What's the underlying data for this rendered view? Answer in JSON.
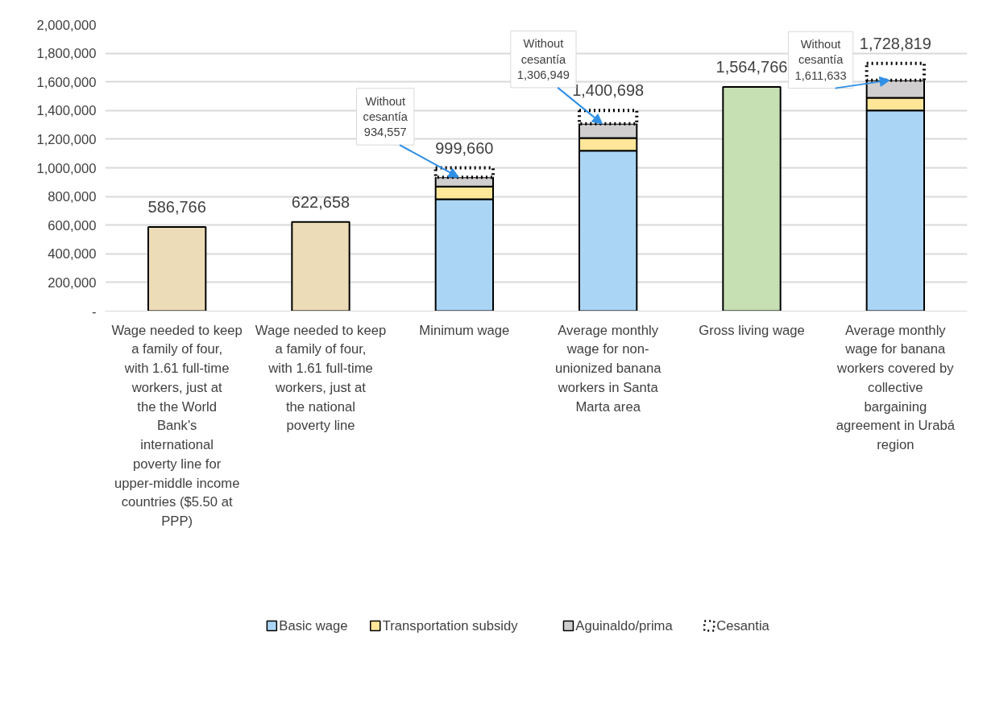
{
  "chart_data": {
    "type": "bar",
    "stacked": true,
    "categories": [
      "Wage needed to keep a family of four, with 1.61 full-time workers, just at the the World Bank's international poverty line for upper-middle income countries ($5.50 at PPP)",
      "Wage needed to keep a family of four, with 1.61 full-time workers, just at the national poverty line",
      "Minimum wage",
      "Average monthly wage for non-unionized banana workers in Santa Marta area",
      "Gross living wage",
      "Average monthly wage for banana workers covered by collective bargaining agreement in Urabá region"
    ],
    "series": [
      {
        "colors": [
          "#ecdcb7",
          "#ecdcb7",
          null,
          null,
          "#c6e0b4",
          null
        ],
        "values": [
          586766,
          622658,
          null,
          null,
          1564766,
          null
        ]
      },
      {
        "name": "Basic wage",
        "color": "#abd5f5",
        "values": [
          null,
          null,
          781242,
          1120000,
          null,
          1400000
        ]
      },
      {
        "name": "Transportation subsidy",
        "color": "#ffe699",
        "values": [
          null,
          null,
          88211,
          88211,
          null,
          88211
        ]
      },
      {
        "name": "Aguinaldo/prima",
        "color": "#d0cece",
        "values": [
          null,
          null,
          65104,
          98738,
          null,
          123422
        ]
      },
      {
        "name": "Cesantia",
        "color": "#ffffff",
        "line_style": "dotted",
        "values": [
          null,
          null,
          65103,
          93749,
          null,
          117186
        ]
      }
    ],
    "totals": [
      "586,766",
      "622,658",
      "999,660",
      "1,400,698",
      "1,564,766",
      "1,728,819"
    ],
    "annotations": [
      {
        "text": "Without\ncesantía\n934,557",
        "x": "Minimum wage",
        "y": 934557
      },
      {
        "text": "Without\ncesantía\n1,306,949",
        "x": "Average monthly wage for non-unionized banana workers in Santa Marta area",
        "y": 1306949
      },
      {
        "text": "Without\ncesantía\n1,611,633",
        "x": "Average monthly wage for banana workers covered by collective bargaining agreement in Urabá region",
        "y": 1611633
      }
    ],
    "ylim": [
      0,
      2000000
    ],
    "yticks": [
      {
        "value": 0,
        "label": "-"
      },
      {
        "value": 200000,
        "label": "200,000"
      },
      {
        "value": 400000,
        "label": "400,000"
      },
      {
        "value": 600000,
        "label": "600,000"
      },
      {
        "value": 800000,
        "label": "800,000"
      },
      {
        "value": 1000000,
        "label": "1,000,000"
      },
      {
        "value": 1200000,
        "label": "1,200,000"
      },
      {
        "value": 1400000,
        "label": "1,400,000"
      },
      {
        "value": 1600000,
        "label": "1,600,000"
      },
      {
        "value": 1800000,
        "label": "1,800,000"
      },
      {
        "value": 2000000,
        "label": "2,000,000"
      }
    ],
    "grid": "y",
    "legend": "bottom"
  }
}
